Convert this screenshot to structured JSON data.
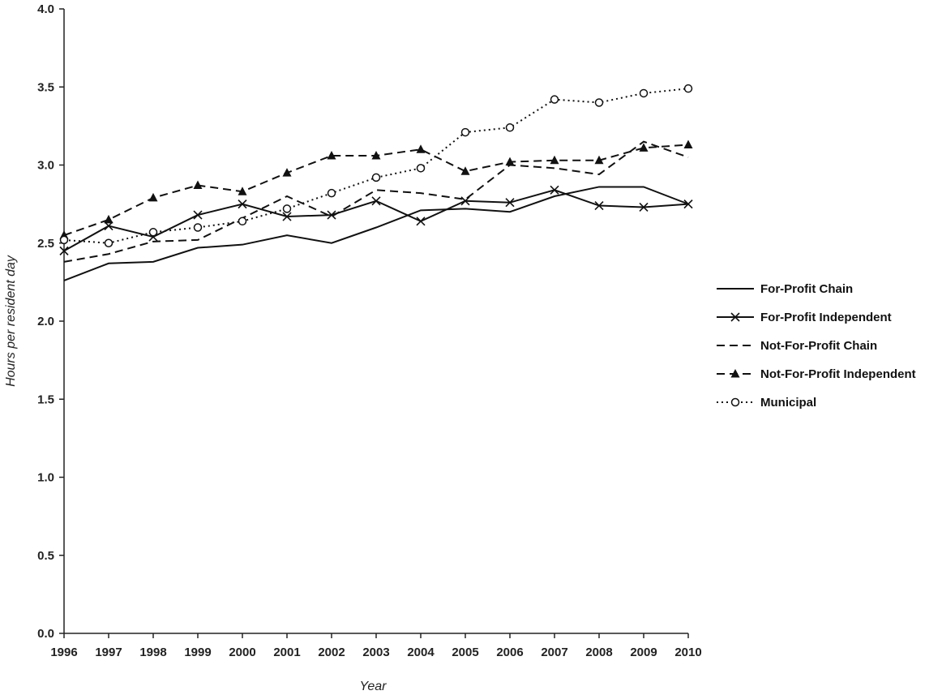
{
  "chart_data": {
    "type": "line",
    "title": "",
    "xlabel": "Year",
    "ylabel": "Hours per resident day",
    "x": [
      "1996",
      "1997",
      "1998",
      "1999",
      "2000",
      "2001",
      "2002",
      "2003",
      "2004",
      "2005",
      "2006",
      "2007",
      "2008",
      "2009",
      "2010"
    ],
    "ylim": [
      0,
      4.0
    ],
    "yticks": [
      "0.0",
      "0.5",
      "1.0",
      "1.5",
      "2.0",
      "2.5",
      "3.0",
      "3.5",
      "4.0"
    ],
    "grid": false,
    "legend_position": "right",
    "series": [
      {
        "name": "For-Profit Chain",
        "line_style": "solid",
        "marker": "none",
        "values": [
          2.26,
          2.37,
          2.38,
          2.47,
          2.49,
          2.55,
          2.5,
          2.6,
          2.71,
          2.72,
          2.7,
          2.8,
          2.86,
          2.86,
          2.75
        ]
      },
      {
        "name": "For-Profit Independent",
        "line_style": "solid",
        "marker": "x",
        "values": [
          2.45,
          2.61,
          2.54,
          2.68,
          2.75,
          2.67,
          2.68,
          2.77,
          2.64,
          2.77,
          2.76,
          2.84,
          2.74,
          2.73,
          2.75
        ]
      },
      {
        "name": "Not-For-Profit Chain",
        "line_style": "dashed",
        "marker": "none",
        "values": [
          2.38,
          2.43,
          2.51,
          2.52,
          2.66,
          2.8,
          2.67,
          2.84,
          2.82,
          2.78,
          3.0,
          2.98,
          2.94,
          3.15,
          3.05
        ]
      },
      {
        "name": "Not-For-Profit Independent",
        "line_style": "dashed",
        "marker": "triangle",
        "values": [
          2.55,
          2.65,
          2.79,
          2.87,
          2.83,
          2.95,
          3.06,
          3.06,
          3.1,
          2.96,
          3.02,
          3.03,
          3.03,
          3.11,
          3.13
        ]
      },
      {
        "name": "Municipal",
        "line_style": "dotted",
        "marker": "circle",
        "values": [
          2.52,
          2.5,
          2.57,
          2.6,
          2.64,
          2.72,
          2.82,
          2.92,
          2.98,
          3.21,
          3.24,
          3.42,
          3.4,
          3.46,
          3.49
        ]
      }
    ]
  }
}
